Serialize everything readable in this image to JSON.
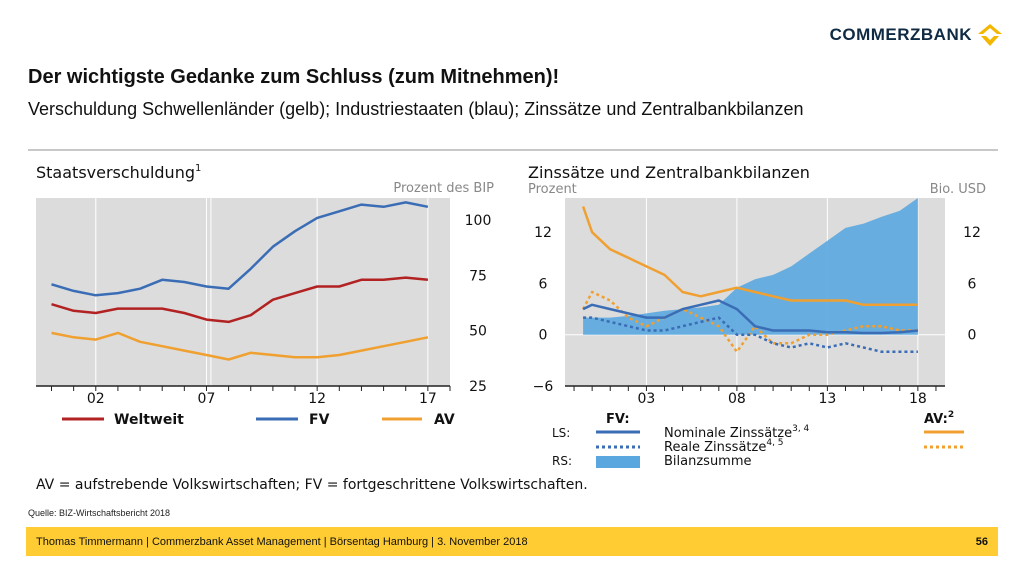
{
  "brand": {
    "name": "COMMERZBANK"
  },
  "slide": {
    "title": "Der wichtigste Gedanke zum Schluss (zum Mitnehmen)!",
    "subtitle": "Verschuldung Schwellenländer (gelb); Industriestaaten (blau); Zinssätze und Zentralbankbilanzen",
    "source": "Quelle: BIZ-Wirtschaftsbericht 2018",
    "footer": "Thomas Timmermann | Commerzbank Asset Management | Börsentag Hamburg | 3. November 2018",
    "page_number": "56",
    "chart_footnote": "AV = aufstrebende Volkswirtschaften; FV = fortgeschrittene Volkswirtschaften."
  },
  "colors": {
    "weltweit": "#b22222",
    "fv": "#3a6db5",
    "av": "#f0a030",
    "bars": "#5aa7e0",
    "panel": "#dcdcdc",
    "footer": "#ffcc33"
  },
  "chart_data": [
    {
      "type": "line",
      "title": "Staatsverschuldung",
      "title_sup": "1",
      "ylabel": "Prozent des BIP",
      "ylim": [
        25,
        110
      ],
      "yticks": [
        "100",
        "75",
        "50",
        "25"
      ],
      "ytick_values": [
        100,
        75,
        50,
        25
      ],
      "xticks": [
        "02",
        "07",
        "12",
        "17"
      ],
      "xtick_values": [
        2002,
        2007,
        2012,
        2017
      ],
      "xlim": [
        1999.3,
        2018
      ],
      "x": [
        2000,
        2001,
        2002,
        2003,
        2004,
        2005,
        2006,
        2007,
        2008,
        2009,
        2010,
        2011,
        2012,
        2013,
        2014,
        2015,
        2016,
        2017
      ],
      "series": [
        {
          "name": "Weltweit",
          "key": "weltweit",
          "values": [
            62,
            59,
            58,
            60,
            60,
            60,
            58,
            55,
            54,
            57,
            64,
            67,
            70,
            70,
            73,
            73,
            74,
            73
          ]
        },
        {
          "name": "FV",
          "key": "fv",
          "values": [
            71,
            68,
            66,
            67,
            69,
            73,
            72,
            70,
            69,
            78,
            88,
            95,
            101,
            104,
            107,
            106,
            108,
            106
          ]
        },
        {
          "name": "AV",
          "key": "av",
          "values": [
            49,
            47,
            46,
            49,
            45,
            43,
            41,
            39,
            37,
            40,
            39,
            38,
            38,
            39,
            41,
            43,
            45,
            47
          ]
        }
      ],
      "legend": [
        "Weltweit",
        "FV",
        "AV"
      ]
    },
    {
      "type": "line",
      "title": "Zinssätze und Zentralbankbilanzen",
      "ylabel_left": "Prozent",
      "ylabel_right": "Bio. USD",
      "ylim": [
        -6,
        16
      ],
      "yticks_left": [
        "12",
        "6",
        "0",
        "−6"
      ],
      "ytick_values_left": [
        12,
        6,
        0,
        -6
      ],
      "yticks_right": [
        "12",
        "6",
        "0"
      ],
      "ytick_values_right": [
        12,
        6,
        0
      ],
      "xticks": [
        "03",
        "08",
        "13",
        "18"
      ],
      "xtick_values": [
        2003,
        2008,
        2013,
        2018
      ],
      "xlim": [
        1998.5,
        2019.5
      ],
      "x": [
        1999.5,
        2000,
        2001,
        2002,
        2003,
        2004,
        2005,
        2006,
        2007,
        2008,
        2009,
        2010,
        2011,
        2012,
        2013,
        2014,
        2015,
        2016,
        2017,
        2018
      ],
      "series": [
        {
          "name": "Bilanzsumme",
          "key": "bars",
          "axis": "right",
          "values": [
            2,
            2,
            2,
            2.2,
            2.5,
            2.8,
            3,
            3.2,
            3.5,
            5.5,
            6.5,
            7,
            8,
            9.5,
            11,
            12.5,
            13,
            13.8,
            14.5,
            16
          ]
        },
        {
          "name": "AV Nominale Zinssätze",
          "key": "av",
          "style": "solid",
          "values": [
            15,
            12,
            10,
            9,
            8,
            7,
            5,
            4.5,
            5,
            5.5,
            5,
            4.5,
            4,
            4,
            4,
            4,
            3.5,
            3.5,
            3.5,
            3.5
          ]
        },
        {
          "name": "AV Reale Zinssätze",
          "key": "av",
          "style": "dotted",
          "values": [
            3,
            5,
            4,
            2,
            1,
            2,
            3,
            2,
            1,
            -2,
            1,
            -1,
            -1,
            0,
            0,
            0.5,
            1,
            1,
            0.5,
            0.5
          ]
        },
        {
          "name": "FV Nominale Zinssätze",
          "key": "fv",
          "style": "solid",
          "values": [
            3,
            3.5,
            3,
            2.5,
            2,
            2,
            3,
            3.5,
            4,
            3,
            1,
            0.5,
            0.5,
            0.5,
            0.3,
            0.3,
            0.2,
            0.2,
            0.3,
            0.5
          ]
        },
        {
          "name": "FV Reale Zinssätze",
          "key": "fv",
          "style": "dotted",
          "values": [
            2,
            2,
            1.5,
            1,
            0.5,
            0.5,
            1,
            1.5,
            2,
            0,
            0,
            -1,
            -1.5,
            -1,
            -1.5,
            -1,
            -1.5,
            -2,
            -2,
            -2
          ]
        }
      ],
      "legend": {
        "header_fv": "FV:",
        "header_av": "AV:",
        "header_av_sup": "2",
        "ls_label": "LS:",
        "rs_label": "RS:",
        "nominal": "Nominale Zinssätze",
        "nominal_sup": "3, 4",
        "real": "Reale Zinssätze",
        "real_sup": "4, 5",
        "balance": "Bilanzsumme"
      }
    }
  ]
}
